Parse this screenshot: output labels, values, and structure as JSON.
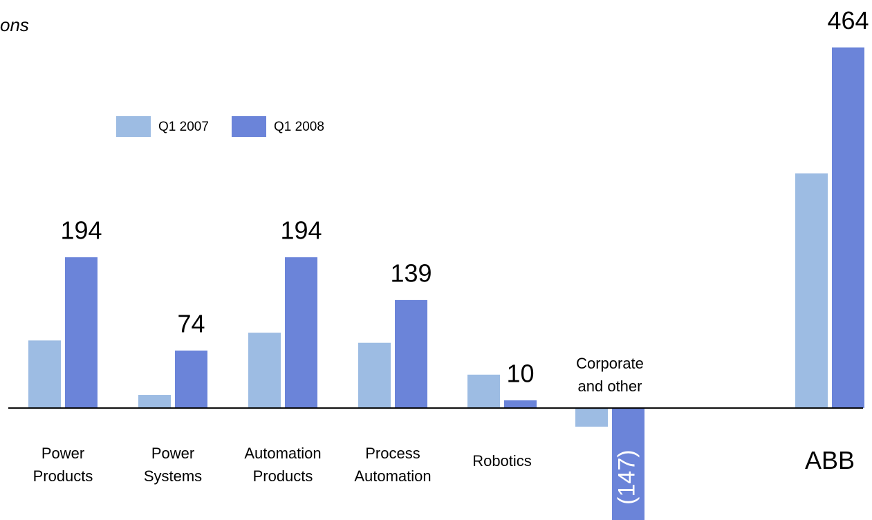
{
  "chart_data": {
    "type": "bar",
    "subtitle": "ons",
    "categories": [
      "Power Products",
      "Power Systems",
      "Automation Products",
      "Process Automation",
      "Robotics",
      "Corporate and other",
      "ABB"
    ],
    "series": [
      {
        "name": "Q1 2007",
        "color": "#9dbce3",
        "values": [
          87,
          17,
          97,
          84,
          43,
          -24,
          302
        ]
      },
      {
        "name": "Q1 2008",
        "color": "#6b84d9",
        "values": [
          194,
          74,
          194,
          139,
          10,
          -147,
          464
        ],
        "value_labels": [
          "194",
          "74",
          "194",
          "139",
          "10",
          "(147)",
          "464"
        ]
      }
    ],
    "ylim": [
      -144,
      525
    ],
    "legend": "top-left"
  }
}
